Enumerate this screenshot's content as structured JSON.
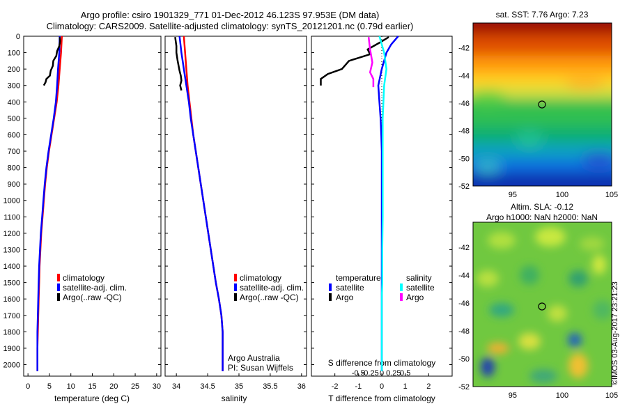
{
  "header": {
    "line1": "Argo profile: csiro 1901329_771 01-Dec-2012 46.123S 97.953E (DM data)",
    "line2": "Climatology: CARS2009. Satellite-adjusted climatology: synTS_20121201.nc (0.79d earlier)"
  },
  "colors": {
    "climatology": "#ff0000",
    "satellite": "#0000ff",
    "argo": "#000000",
    "sat_salinity": "#00ffff",
    "argo_salinity": "#ff00ff"
  },
  "panels": {
    "depth_ticks": [
      "0",
      "100",
      "200",
      "300",
      "400",
      "500",
      "600",
      "700",
      "800",
      "900",
      "1000",
      "1100",
      "1200",
      "1300",
      "1400",
      "1500",
      "1600",
      "1700",
      "1800",
      "1900",
      "2000"
    ],
    "temperature": {
      "xlabel": "temperature (deg C)",
      "xticks": [
        "0",
        "5",
        "10",
        "15",
        "20",
        "25",
        "30"
      ]
    },
    "salinity": {
      "xlabel": "salinity",
      "xticks": [
        "34",
        "34.5",
        "35",
        "35.5",
        "36"
      ]
    },
    "difference": {
      "xlabel": "T difference from climatology",
      "xticks": [
        "-2",
        "-1",
        "0",
        "1",
        "2"
      ],
      "s_label": "S difference from climatology",
      "s_ticks": [
        "-0.5",
        "-0.25",
        "0",
        "0.25",
        "0.5"
      ],
      "legend_headers": [
        "temperature",
        "salinity"
      ],
      "legend_entries": [
        "satellite",
        "Argo",
        "satellite",
        "Argo"
      ]
    },
    "legend": [
      "climatology",
      "satellite-adj. clim.",
      "Argo(..raw -QC)"
    ],
    "attribution": [
      "Argo Australia",
      "PI: Susan Wijffels"
    ]
  },
  "maps": {
    "sst": {
      "title": "sat. SST: 7.76 Argo: 7.23",
      "yticks": [
        "-42",
        "-44",
        "-46",
        "-48",
        "-50",
        "-52"
      ],
      "xticks": [
        "95",
        "100",
        "105"
      ]
    },
    "sla": {
      "title1": "Altim. SLA: -0.12",
      "title2": "Argo h1000: NaN h2000: NaN",
      "yticks": [
        "-42",
        "-44",
        "-46",
        "-48",
        "-50",
        "-52"
      ],
      "xticks": [
        "95",
        "100",
        "105"
      ]
    },
    "credit": "©IMOS 03-Aug-2017 23:21:23"
  },
  "chart_data": [
    {
      "type": "line",
      "title": "",
      "xlabel": "temperature (deg C)",
      "ylabel": "",
      "xlim": [
        -1,
        31
      ],
      "ylim": [
        2070,
        0
      ],
      "y_inverted": true,
      "series": [
        {
          "name": "climatology",
          "x": [
            7.9,
            7.7,
            7.4,
            7.1,
            6.7,
            6.1,
            5.5,
            4.9,
            4.4,
            4.0,
            3.7,
            3.4,
            3.1,
            2.9,
            2.7,
            2.6,
            2.5,
            2.4,
            2.3,
            2.2,
            2.2
          ],
          "y": [
            0,
            100,
            200,
            300,
            400,
            500,
            600,
            700,
            800,
            900,
            1000,
            1100,
            1200,
            1300,
            1400,
            1500,
            1600,
            1700,
            1800,
            1900,
            2040
          ]
        },
        {
          "name": "satellite-adj. clim.",
          "x": [
            7.4,
            7.3,
            7.0,
            6.8,
            6.5,
            6.0,
            5.4,
            4.8,
            4.3,
            3.9,
            3.6,
            3.3,
            3.0,
            2.8,
            2.6,
            2.5,
            2.4,
            2.3,
            2.2,
            2.2,
            2.2
          ],
          "y": [
            0,
            100,
            200,
            300,
            400,
            500,
            600,
            700,
            800,
            900,
            1000,
            1100,
            1200,
            1300,
            1400,
            1500,
            1600,
            1700,
            1800,
            1900,
            2040
          ]
        },
        {
          "name": "Argo(..raw -QC)",
          "x": [
            7.4,
            7.5,
            7.3,
            6.8,
            6.6,
            5.9,
            5.8,
            5.3,
            5.1,
            4.3,
            4.1,
            3.7
          ],
          "y": [
            5,
            30,
            60,
            90,
            120,
            150,
            180,
            210,
            240,
            260,
            280,
            300
          ]
        }
      ]
    },
    {
      "type": "line",
      "title": "",
      "xlabel": "salinity",
      "ylabel": "",
      "xlim": [
        33.82,
        36.08
      ],
      "ylim": [
        2070,
        0
      ],
      "y_inverted": true,
      "series": [
        {
          "name": "climatology",
          "x": [
            34.12,
            34.14,
            34.16,
            34.18,
            34.21,
            34.24,
            34.27,
            34.31,
            34.35,
            34.39,
            34.43,
            34.47,
            34.51,
            34.55,
            34.59,
            34.63,
            34.68,
            34.72,
            34.74,
            34.74,
            34.74
          ],
          "y": [
            0,
            100,
            200,
            300,
            400,
            500,
            600,
            700,
            800,
            900,
            1000,
            1100,
            1200,
            1300,
            1400,
            1500,
            1600,
            1700,
            1800,
            1900,
            2040
          ]
        },
        {
          "name": "satellite-adj. clim.",
          "x": [
            34.05,
            34.08,
            34.12,
            34.16,
            34.2,
            34.23,
            34.27,
            34.31,
            34.35,
            34.39,
            34.43,
            34.47,
            34.51,
            34.55,
            34.59,
            34.63,
            34.68,
            34.72,
            34.74,
            34.74,
            34.74
          ],
          "y": [
            0,
            100,
            200,
            300,
            400,
            500,
            600,
            700,
            800,
            900,
            1000,
            1100,
            1200,
            1300,
            1400,
            1500,
            1600,
            1700,
            1800,
            1900,
            2040
          ]
        },
        {
          "name": "Argo(..raw -QC)",
          "x": [
            33.98,
            34.0,
            34.0,
            34.02,
            34.04,
            34.05,
            34.07,
            34.08,
            34.06,
            34.08
          ],
          "y": [
            5,
            60,
            100,
            150,
            190,
            210,
            240,
            270,
            300,
            330
          ]
        }
      ]
    },
    {
      "type": "line",
      "title": "",
      "xlabel": "T difference from climatology",
      "ylabel": "",
      "xlim": [
        -3,
        3
      ],
      "ylim": [
        2070,
        0
      ],
      "y_inverted": true,
      "series": [
        {
          "name": "temperature satellite",
          "x": [
            0.7,
            0.4,
            0.2,
            0.0,
            -0.15,
            -0.1,
            -0.05,
            -0.02,
            0.0,
            0.0,
            0.0,
            0.0,
            0.0,
            0.0,
            0.0,
            0.0,
            0.0,
            0.0,
            0.0,
            0.0
          ],
          "y": [
            0,
            50,
            100,
            200,
            300,
            400,
            500,
            600,
            700,
            800,
            900,
            1000,
            1100,
            1200,
            1300,
            1400,
            1500,
            1700,
            1900,
            2040
          ]
        },
        {
          "name": "temperature Argo",
          "x": [
            0.3,
            -0.1,
            -0.6,
            -0.5,
            -1.4,
            -1.7,
            -2.3,
            -2.6,
            -2.6
          ],
          "y": [
            5,
            40,
            80,
            110,
            150,
            200,
            230,
            260,
            300
          ]
        },
        {
          "name": "salinity satellite",
          "x": [
            -0.05,
            0.05,
            0.1,
            0.05,
            0.02,
            0.02,
            0.02,
            0.02,
            0.01,
            0.01,
            0.0,
            0.0,
            0.0,
            0.0,
            0.0
          ],
          "y": [
            0,
            100,
            200,
            300,
            500,
            700,
            900,
            1100,
            1300,
            1500,
            1600,
            1700,
            1800,
            1900,
            2040
          ]
        },
        {
          "name": "salinity Argo",
          "x": [
            -0.28,
            -0.25,
            -0.2,
            -0.25,
            -0.18,
            -0.18
          ],
          "y": [
            5,
            80,
            160,
            220,
            260,
            310
          ]
        }
      ]
    },
    {
      "type": "heatmap",
      "title": "sat. SST: 7.76 Argo: 7.23",
      "xlim": [
        91,
        105
      ],
      "ylim": [
        -52,
        -40.2
      ],
      "x_ticks": [
        95,
        100,
        105
      ],
      "y_ticks": [
        -42,
        -44,
        -46,
        -48,
        -50,
        -52
      ],
      "marker": {
        "lon": 97.953,
        "lat": -46.123
      }
    },
    {
      "type": "heatmap",
      "title": "Altim. SLA: -0.12",
      "xlim": [
        91,
        105
      ],
      "ylim": [
        -52,
        -40.2
      ],
      "x_ticks": [
        95,
        100,
        105
      ],
      "y_ticks": [
        -42,
        -44,
        -46,
        -48,
        -50,
        -52
      ],
      "marker": {
        "lon": 97.953,
        "lat": -46.123
      }
    }
  ]
}
